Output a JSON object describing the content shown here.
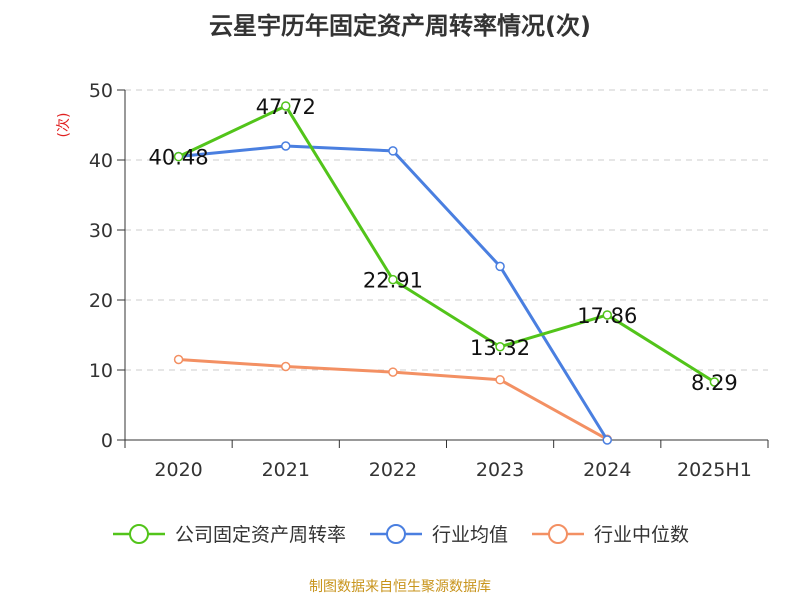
{
  "title": "云星宇历年固定资产周转率情况(次)",
  "source": "制图数据来自恒生聚源数据库",
  "chart_data": {
    "type": "line",
    "title": "云星宇历年固定资产周转率情况(次)",
    "ylabel": "(次)",
    "categories": [
      "2020",
      "2021",
      "2022",
      "2023",
      "2024",
      "2025H1"
    ],
    "ylim": [
      0,
      50
    ],
    "yticks": [
      0,
      10,
      20,
      30,
      40,
      50
    ],
    "grid": true,
    "legend_position": "bottom",
    "series": [
      {
        "name": "公司固定资产周转率",
        "color": "#52c41a",
        "values": [
          40.48,
          47.72,
          22.91,
          13.32,
          17.86,
          8.29
        ],
        "labels": [
          "40.48",
          "47.72",
          "22.91",
          "13.32",
          "17.86",
          "8.29"
        ]
      },
      {
        "name": "行业均值",
        "color": "#4a7fe0",
        "values": [
          40.5,
          42.0,
          41.3,
          24.8,
          0,
          null
        ]
      },
      {
        "name": "行业中位数",
        "color": "#f39063",
        "values": [
          11.5,
          10.5,
          9.7,
          8.6,
          0.1,
          null
        ]
      }
    ]
  }
}
